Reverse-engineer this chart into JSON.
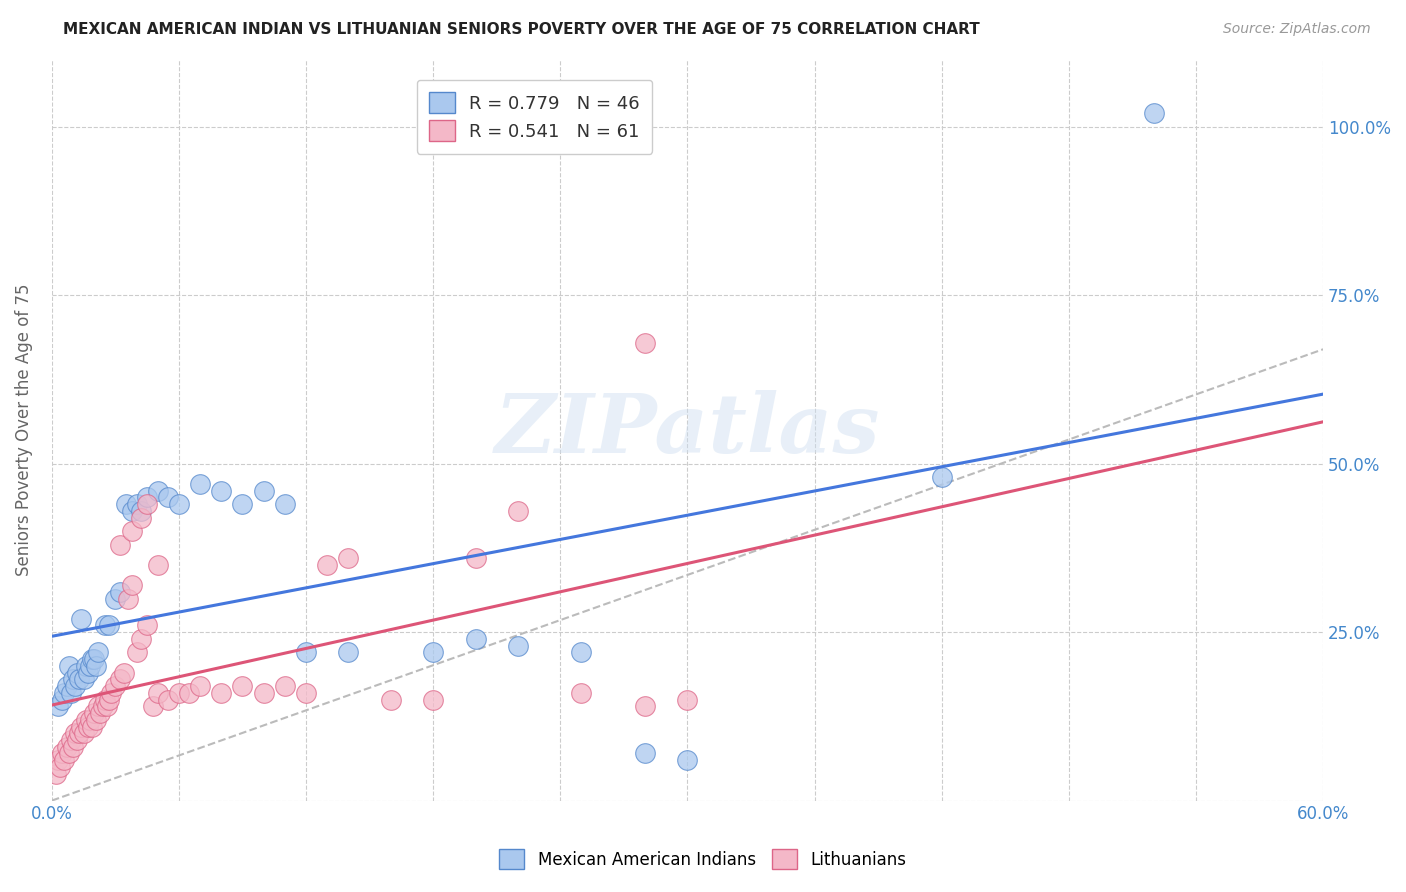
{
  "title": "MEXICAN AMERICAN INDIAN VS LITHUANIAN SENIORS POVERTY OVER THE AGE OF 75 CORRELATION CHART",
  "source": "Source: ZipAtlas.com",
  "ylabel": "Seniors Poverty Over the Age of 75",
  "xmin": 0.0,
  "xmax": 0.6,
  "ymin": 0.0,
  "ymax": 1.1,
  "xtick_positions": [
    0.0,
    0.06,
    0.12,
    0.18,
    0.24,
    0.3,
    0.36,
    0.42,
    0.48,
    0.54,
    0.6
  ],
  "xtick_labels": [
    "0.0%",
    "",
    "",
    "",
    "",
    "",
    "",
    "",
    "",
    "",
    "60.0%"
  ],
  "ytick_positions": [
    0.0,
    0.25,
    0.5,
    0.75,
    1.0
  ],
  "ytick_labels": [
    "",
    "25.0%",
    "50.0%",
    "75.0%",
    "100.0%"
  ],
  "blue_R": "0.779",
  "blue_N": "46",
  "pink_R": "0.541",
  "pink_N": "61",
  "blue_fill_color": "#aac8ee",
  "pink_fill_color": "#f4b8c8",
  "blue_edge_color": "#5588cc",
  "pink_edge_color": "#dd6688",
  "blue_line_color": "#4477dd",
  "pink_line_color": "#dd5577",
  "gray_line_color": "#bbbbbb",
  "legend_label_blue": "Mexican American Indians",
  "legend_label_pink": "Lithuanians",
  "watermark_text": "ZIPatlas",
  "title_fontsize": 11,
  "source_fontsize": 10,
  "tick_fontsize": 12,
  "ylabel_fontsize": 12,
  "legend_fontsize": 12,
  "blue_scatter_x": [
    0.003,
    0.005,
    0.006,
    0.007,
    0.008,
    0.009,
    0.01,
    0.011,
    0.012,
    0.013,
    0.014,
    0.015,
    0.016,
    0.017,
    0.018,
    0.019,
    0.02,
    0.021,
    0.022,
    0.025,
    0.027,
    0.03,
    0.032,
    0.035,
    0.038,
    0.04,
    0.042,
    0.045,
    0.05,
    0.055,
    0.06,
    0.07,
    0.08,
    0.09,
    0.1,
    0.11,
    0.12,
    0.14,
    0.18,
    0.2,
    0.22,
    0.25,
    0.28,
    0.3,
    0.42,
    0.52
  ],
  "blue_scatter_y": [
    0.14,
    0.15,
    0.16,
    0.17,
    0.2,
    0.16,
    0.18,
    0.17,
    0.19,
    0.18,
    0.27,
    0.18,
    0.2,
    0.19,
    0.2,
    0.21,
    0.21,
    0.2,
    0.22,
    0.26,
    0.26,
    0.3,
    0.31,
    0.44,
    0.43,
    0.44,
    0.43,
    0.45,
    0.46,
    0.45,
    0.44,
    0.47,
    0.46,
    0.44,
    0.46,
    0.44,
    0.22,
    0.22,
    0.22,
    0.24,
    0.23,
    0.22,
    0.07,
    0.06,
    0.48,
    1.02
  ],
  "pink_scatter_x": [
    0.002,
    0.003,
    0.004,
    0.005,
    0.006,
    0.007,
    0.008,
    0.009,
    0.01,
    0.011,
    0.012,
    0.013,
    0.014,
    0.015,
    0.016,
    0.017,
    0.018,
    0.019,
    0.02,
    0.021,
    0.022,
    0.023,
    0.024,
    0.025,
    0.026,
    0.027,
    0.028,
    0.03,
    0.032,
    0.034,
    0.036,
    0.038,
    0.04,
    0.042,
    0.045,
    0.048,
    0.05,
    0.055,
    0.06,
    0.065,
    0.07,
    0.08,
    0.09,
    0.1,
    0.11,
    0.12,
    0.13,
    0.14,
    0.16,
    0.18,
    0.2,
    0.22,
    0.25,
    0.28,
    0.3,
    0.032,
    0.038,
    0.042,
    0.045,
    0.05,
    0.28
  ],
  "pink_scatter_y": [
    0.04,
    0.06,
    0.05,
    0.07,
    0.06,
    0.08,
    0.07,
    0.09,
    0.08,
    0.1,
    0.09,
    0.1,
    0.11,
    0.1,
    0.12,
    0.11,
    0.12,
    0.11,
    0.13,
    0.12,
    0.14,
    0.13,
    0.14,
    0.15,
    0.14,
    0.15,
    0.16,
    0.17,
    0.18,
    0.19,
    0.3,
    0.32,
    0.22,
    0.24,
    0.26,
    0.14,
    0.16,
    0.15,
    0.16,
    0.16,
    0.17,
    0.16,
    0.17,
    0.16,
    0.17,
    0.16,
    0.35,
    0.36,
    0.15,
    0.15,
    0.36,
    0.43,
    0.16,
    0.14,
    0.15,
    0.38,
    0.4,
    0.42,
    0.44,
    0.35,
    0.68
  ]
}
